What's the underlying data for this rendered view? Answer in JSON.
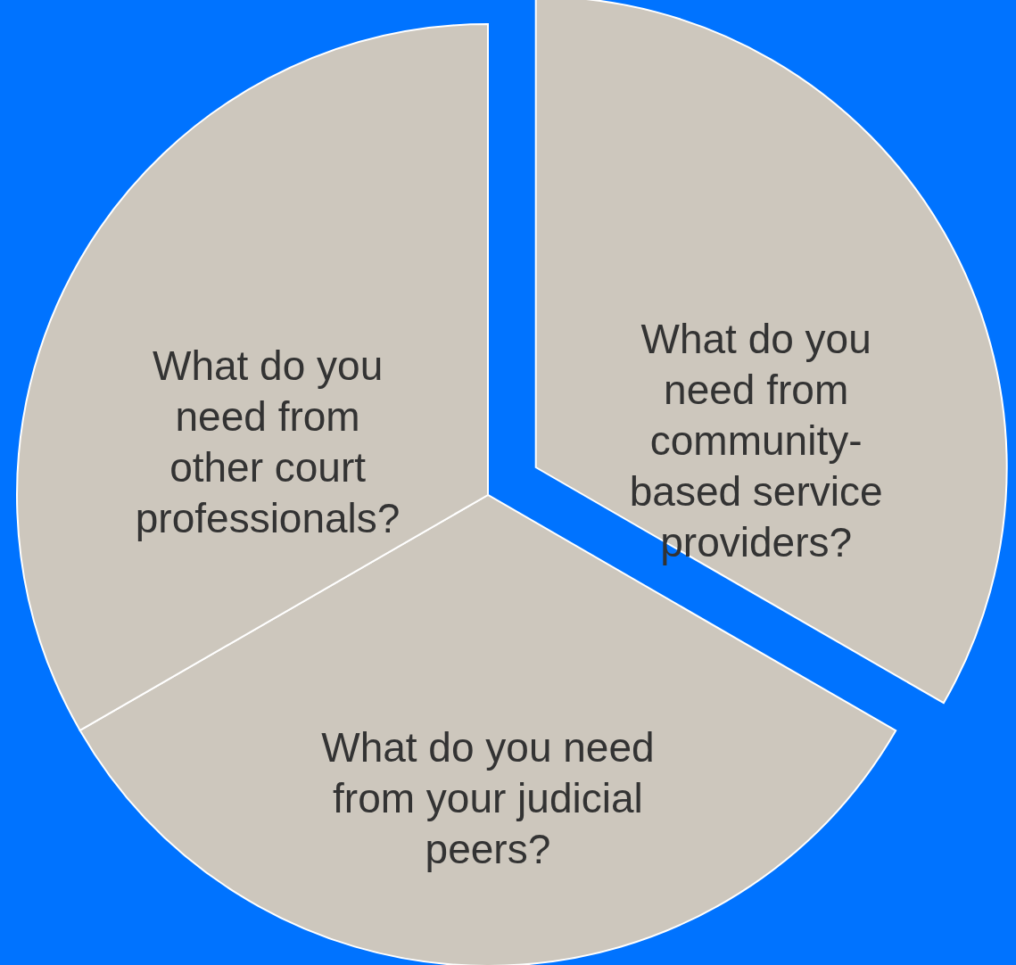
{
  "chart_data": {
    "type": "pie",
    "categories": [
      "What do you need from community-based service providers?",
      "What do you need from your judicial peers?",
      "What do you need from other court professionals?"
    ],
    "values": [
      33.34,
      33.33,
      33.33
    ],
    "colors": [
      "#cdc7bd",
      "#cdc7bd",
      "#cdc7bd"
    ]
  }
}
